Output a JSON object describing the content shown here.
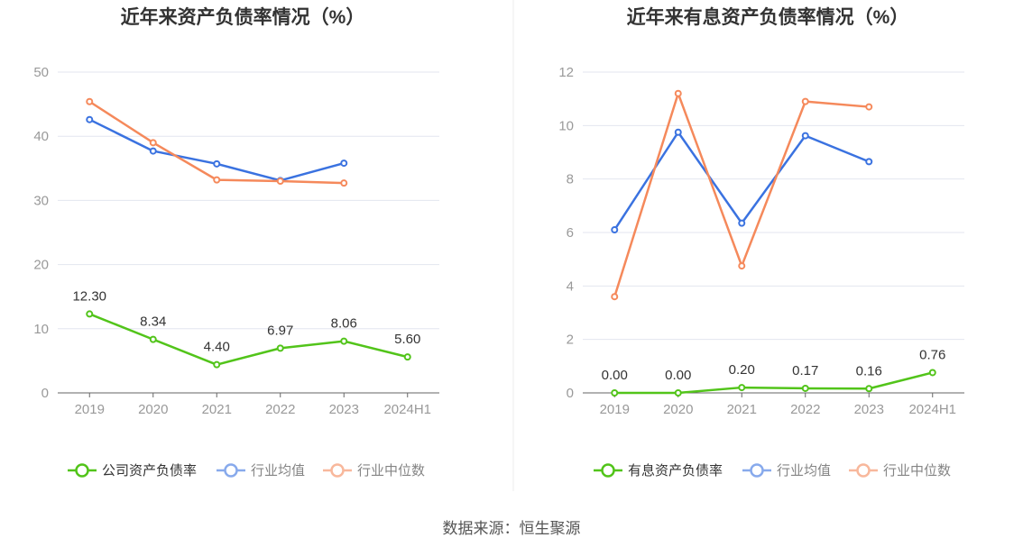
{
  "source": "数据来源：恒生聚源",
  "colors": {
    "company": "#52c41a",
    "avg": "#3a72e0",
    "median": "#f5895b",
    "grid": "#e3e6ef",
    "axis": "#666666"
  },
  "chart_data": [
    {
      "type": "line",
      "title": "近年来资产负债率情况（%）",
      "categories": [
        "2019",
        "2020",
        "2021",
        "2022",
        "2023",
        "2024H1"
      ],
      "ylim": [
        0,
        50
      ],
      "yticks": [
        0,
        10,
        20,
        30,
        40,
        50
      ],
      "grid": true,
      "legend_position": "bottom",
      "series": [
        {
          "name": "公司资产负债率",
          "key": "company",
          "values": [
            12.3,
            8.34,
            4.4,
            6.97,
            8.06,
            5.6
          ],
          "labels": [
            "12.30",
            "8.34",
            "4.40",
            "6.97",
            "8.06",
            "5.60"
          ]
        },
        {
          "name": "行业均值",
          "key": "avg",
          "values": [
            42.6,
            37.7,
            35.7,
            33.1,
            35.8,
            null
          ]
        },
        {
          "name": "行业中位数",
          "key": "median",
          "values": [
            45.4,
            39.0,
            33.2,
            33.0,
            32.7,
            null
          ]
        }
      ]
    },
    {
      "type": "line",
      "title": "近年来有息资产负债率情况（%）",
      "categories": [
        "2019",
        "2020",
        "2021",
        "2022",
        "2023",
        "2024H1"
      ],
      "ylim": [
        0,
        12
      ],
      "yticks": [
        0,
        2,
        4,
        6,
        8,
        10,
        12
      ],
      "grid": true,
      "legend_position": "bottom",
      "series": [
        {
          "name": "有息资产负债率",
          "key": "company",
          "values": [
            0.0,
            0.0,
            0.2,
            0.17,
            0.16,
            0.76
          ],
          "labels": [
            "0.00",
            "0.00",
            "0.20",
            "0.17",
            "0.16",
            "0.76"
          ]
        },
        {
          "name": "行业均值",
          "key": "avg",
          "values": [
            6.1,
            9.75,
            6.35,
            9.62,
            8.65,
            null
          ]
        },
        {
          "name": "行业中位数",
          "key": "median",
          "values": [
            3.6,
            11.2,
            4.75,
            10.9,
            10.7,
            null
          ]
        }
      ]
    }
  ]
}
